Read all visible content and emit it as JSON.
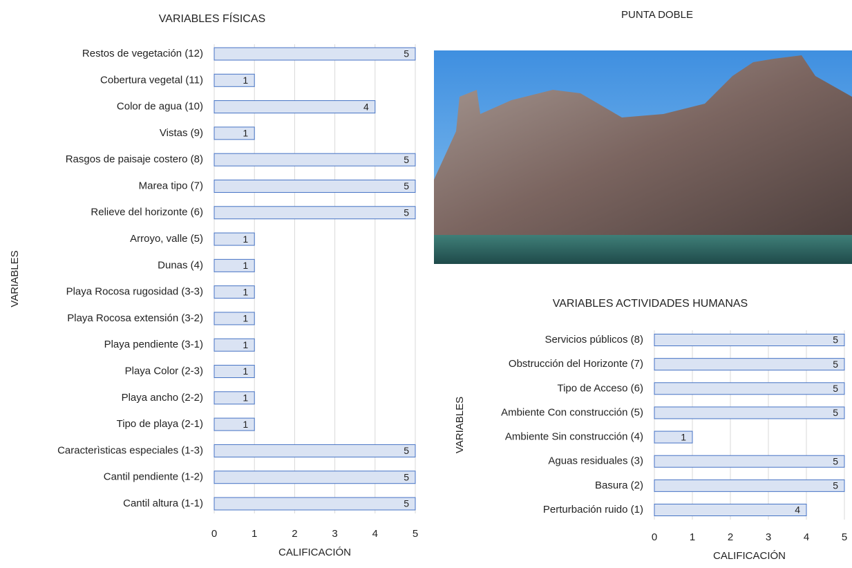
{
  "chart_data": [
    {
      "type": "bar",
      "orientation": "horizontal",
      "title": "VARIABLES FÍSICAS",
      "x_label": "CALIFICACIÓN",
      "y_label": "VARIABLES",
      "categories": [
        "Restos de vegetación (12)",
        "Cobertura vegetal (11)",
        "Color de agua (10)",
        "Vistas (9)",
        "Rasgos de paisaje costero (8)",
        "Marea tipo (7)",
        "Relieve del horizonte (6)",
        "Arroyo, valle (5)",
        "Dunas (4)",
        "Playa Rocosa rugosidad (3-3)",
        "Playa Rocosa extensión (3-2)",
        "Playa pendiente (3-1)",
        "Playa Color (2-3)",
        "Playa ancho (2-2)",
        "Tipo de playa (2-1)",
        "Caracterìsticas especiales (1-3)",
        "Cantil pendiente (1-2)",
        "Cantil altura (1-1)"
      ],
      "values": [
        5,
        1,
        4,
        1,
        5,
        5,
        5,
        1,
        1,
        1,
        1,
        1,
        1,
        1,
        1,
        5,
        5,
        5
      ],
      "color": "#dae3f3",
      "edge_color": "#4472c4",
      "xlim": [
        0,
        5
      ],
      "xticks": [
        0,
        1,
        2,
        3,
        4,
        5
      ],
      "grid": true
    },
    {
      "type": "bar",
      "orientation": "horizontal",
      "title": "VARIABLES ACTIVIDADES HUMANAS",
      "x_label": "CALIFICACIÓN",
      "y_label": "VARIABLES",
      "categories": [
        "Servicios públicos (8)",
        "Obstrucción del Horizonte (7)",
        "Tipo de Acceso (6)",
        "Ambiente Con construcción (5)",
        "Ambiente Sin construcción (4)",
        "Aguas residuales (3)",
        "Basura (2)",
        "Perturbación ruido (1)"
      ],
      "values": [
        5,
        5,
        5,
        5,
        1,
        5,
        5,
        4
      ],
      "color": "#dae3f3",
      "edge_color": "#4472c4",
      "xlim": [
        0,
        5
      ],
      "xticks": [
        0,
        1,
        2,
        3,
        4,
        5
      ],
      "grid": true
    }
  ],
  "photo": {
    "title": "PUNTA DOBLE"
  }
}
